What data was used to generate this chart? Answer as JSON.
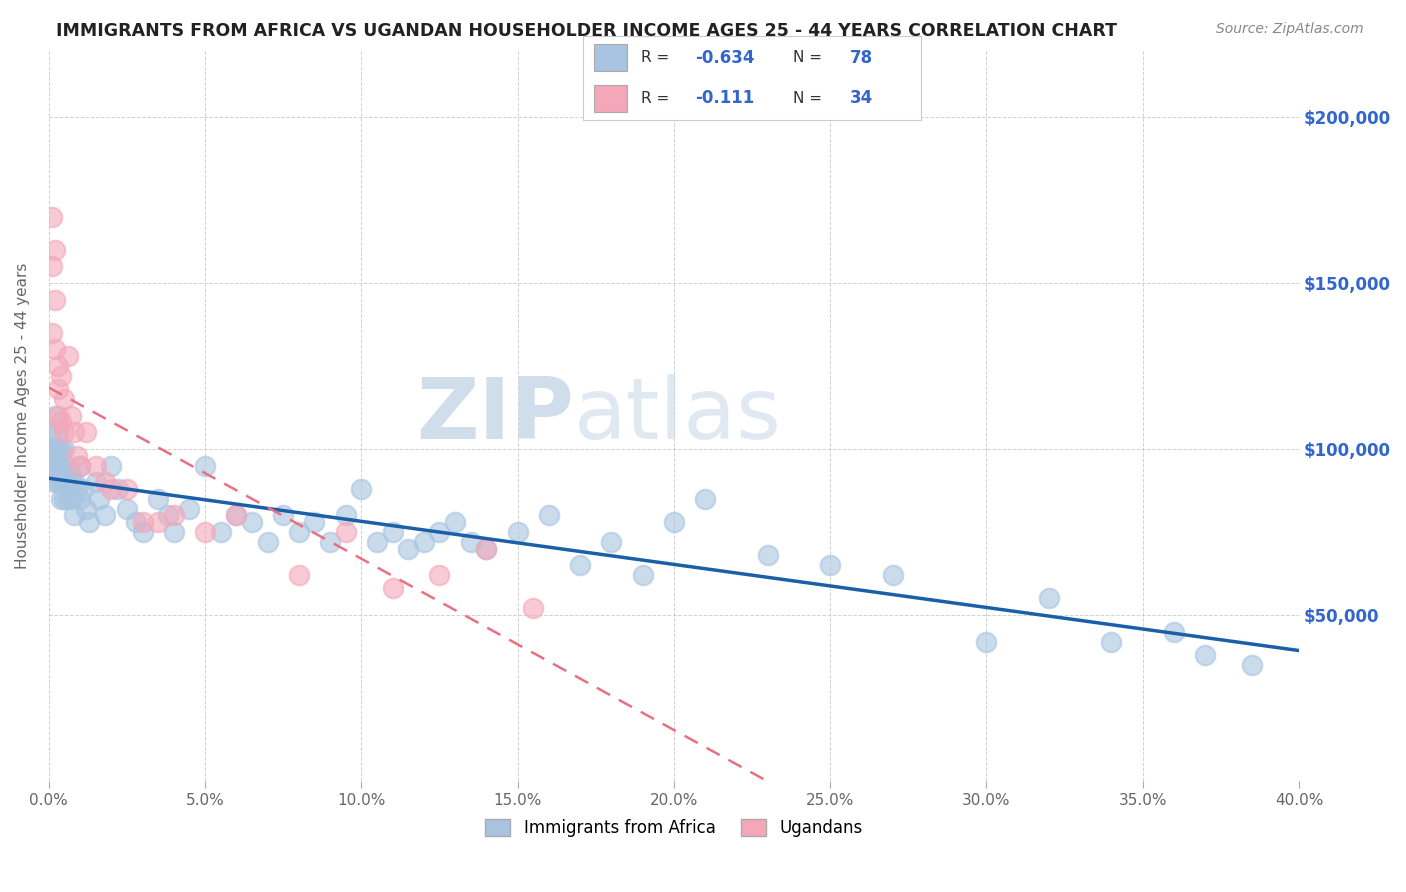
{
  "title": "IMMIGRANTS FROM AFRICA VS UGANDAN HOUSEHOLDER INCOME AGES 25 - 44 YEARS CORRELATION CHART",
  "source": "Source: ZipAtlas.com",
  "ylabel_label": "Householder Income Ages 25 - 44 years",
  "xlim": [
    0.0,
    0.4
  ],
  "ylim": [
    0,
    220000
  ],
  "ytick_right_labels": [
    "$50,000",
    "$100,000",
    "$150,000",
    "$200,000"
  ],
  "ytick_right_values": [
    50000,
    100000,
    150000,
    200000
  ],
  "africa_color": "#a8c4e0",
  "uganda_color": "#f4a7b9",
  "africa_line_color": "#1a5fa8",
  "uganda_line_color": "#e87080",
  "watermark_zip": "ZIP",
  "watermark_atlas": "atlas",
  "africa_scatter_x": [
    0.001,
    0.001,
    0.001,
    0.002,
    0.002,
    0.002,
    0.002,
    0.003,
    0.003,
    0.003,
    0.003,
    0.004,
    0.004,
    0.004,
    0.004,
    0.005,
    0.005,
    0.005,
    0.006,
    0.006,
    0.006,
    0.007,
    0.007,
    0.008,
    0.008,
    0.009,
    0.01,
    0.01,
    0.011,
    0.012,
    0.013,
    0.015,
    0.016,
    0.018,
    0.02,
    0.022,
    0.025,
    0.028,
    0.03,
    0.035,
    0.038,
    0.04,
    0.045,
    0.05,
    0.055,
    0.06,
    0.065,
    0.07,
    0.075,
    0.08,
    0.085,
    0.09,
    0.095,
    0.1,
    0.105,
    0.11,
    0.115,
    0.12,
    0.125,
    0.13,
    0.135,
    0.14,
    0.15,
    0.16,
    0.17,
    0.18,
    0.19,
    0.2,
    0.21,
    0.23,
    0.25,
    0.27,
    0.3,
    0.32,
    0.34,
    0.36,
    0.37,
    0.385
  ],
  "africa_scatter_y": [
    105000,
    100000,
    95000,
    110000,
    100000,
    95000,
    90000,
    105000,
    100000,
    95000,
    90000,
    100000,
    95000,
    90000,
    85000,
    100000,
    90000,
    85000,
    95000,
    90000,
    85000,
    92000,
    85000,
    90000,
    80000,
    88000,
    95000,
    85000,
    88000,
    82000,
    78000,
    90000,
    85000,
    80000,
    95000,
    88000,
    82000,
    78000,
    75000,
    85000,
    80000,
    75000,
    82000,
    95000,
    75000,
    80000,
    78000,
    72000,
    80000,
    75000,
    78000,
    72000,
    80000,
    88000,
    72000,
    75000,
    70000,
    72000,
    75000,
    78000,
    72000,
    70000,
    75000,
    80000,
    65000,
    72000,
    62000,
    78000,
    85000,
    68000,
    65000,
    62000,
    42000,
    55000,
    42000,
    45000,
    38000,
    35000
  ],
  "uganda_scatter_x": [
    0.001,
    0.001,
    0.001,
    0.002,
    0.002,
    0.002,
    0.003,
    0.003,
    0.003,
    0.004,
    0.004,
    0.005,
    0.005,
    0.006,
    0.007,
    0.008,
    0.009,
    0.01,
    0.012,
    0.015,
    0.018,
    0.02,
    0.025,
    0.03,
    0.035,
    0.04,
    0.05,
    0.06,
    0.08,
    0.095,
    0.11,
    0.125,
    0.14,
    0.155
  ],
  "uganda_scatter_y": [
    135000,
    155000,
    170000,
    160000,
    145000,
    130000,
    125000,
    118000,
    110000,
    122000,
    108000,
    115000,
    105000,
    128000,
    110000,
    105000,
    98000,
    95000,
    105000,
    95000,
    90000,
    88000,
    88000,
    78000,
    78000,
    80000,
    75000,
    80000,
    62000,
    75000,
    58000,
    62000,
    70000,
    52000
  ],
  "africa_R": "-0.634",
  "africa_N": "78",
  "uganda_R": "-0.111",
  "uganda_N": "34"
}
